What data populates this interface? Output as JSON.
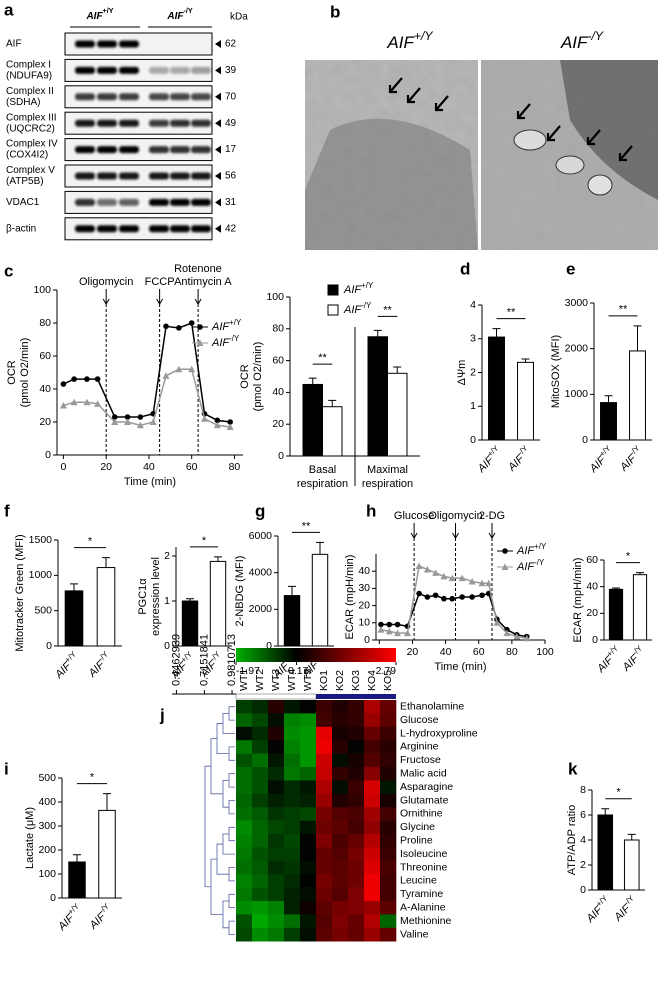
{
  "blot": {
    "panel": "a",
    "groups": [
      "AIF+/Y",
      "AIF-/Y"
    ],
    "unit": "kDa",
    "rows": [
      {
        "label": [
          "AIF"
        ],
        "kda": 62
      },
      {
        "label": [
          "Complex I",
          "(NDUFA9)"
        ],
        "kda": 39
      },
      {
        "label": [
          "Complex II",
          "(SDHA)"
        ],
        "kda": 70
      },
      {
        "label": [
          "Complex III",
          "(UQCRC2)"
        ],
        "kda": 49
      },
      {
        "label": [
          "Complex IV",
          "(COX4I2)"
        ],
        "kda": 17
      },
      {
        "label": [
          "Complex V",
          "(ATP5B)"
        ],
        "kda": 56
      },
      {
        "label": [
          "VDAC1"
        ],
        "kda": 31
      },
      {
        "label": [
          "β-actin"
        ],
        "kda": 42
      }
    ]
  },
  "micrographs": {
    "panel": "b",
    "titles": [
      "AIF+/Y",
      "AIF-/Y"
    ]
  },
  "chart_data": [
    {
      "type": "line",
      "panel": "c",
      "ylabel": [
        "OCR",
        "(pmol O2/min)"
      ],
      "xlabel": "Time (min)",
      "xlim": [
        -3,
        84
      ],
      "xticks": [
        0,
        20,
        40,
        60,
        80
      ],
      "ylim": [
        0,
        100
      ],
      "yticks": [
        0,
        20,
        40,
        60,
        80,
        100
      ],
      "x": [
        0,
        5,
        11,
        16,
        24,
        30,
        36,
        42,
        48,
        54,
        60,
        66,
        72,
        78
      ],
      "series": [
        {
          "name": "AIF+/Y",
          "color": "#000000",
          "marker": "circle",
          "values": [
            43,
            46,
            46,
            46,
            23,
            23,
            23,
            25,
            78,
            77,
            80,
            25,
            21,
            20
          ]
        },
        {
          "name": "AIF-/Y",
          "color": "#999999",
          "marker": "triangle",
          "values": [
            30,
            32,
            32,
            31,
            20,
            20,
            18,
            20,
            48,
            52,
            52,
            22,
            18,
            17
          ]
        }
      ],
      "annotations": [
        {
          "text": [
            "Oligomycin"
          ],
          "x": 20
        },
        {
          "text": [
            "FCCP"
          ],
          "x": 45
        },
        {
          "text": [
            "Rotenone",
            "Antimycin A"
          ],
          "x": 63
        }
      ]
    },
    {
      "type": "bar",
      "ylabel": [
        "OCR",
        "(pmol O2/min)"
      ],
      "categories": [
        [
          "Basal",
          "respiration"
        ],
        [
          "Maximal",
          "respiration"
        ]
      ],
      "ylim": [
        0,
        100
      ],
      "yticks": [
        0,
        20,
        40,
        60,
        80,
        100
      ],
      "series": [
        {
          "name": "AIF+/Y",
          "color": "#000000",
          "values": [
            45,
            75
          ],
          "errors": [
            4,
            4
          ]
        },
        {
          "name": "AIF-/Y",
          "color": "#ffffff",
          "values": [
            31,
            52
          ],
          "errors": [
            4,
            4
          ]
        }
      ],
      "significance": [
        "**",
        "**"
      ]
    },
    {
      "type": "bar",
      "panel": "d",
      "ylabel": "ΔΨm",
      "categories": [
        "AIF+/Y",
        "AIF-/Y"
      ],
      "ylim": [
        0,
        4
      ],
      "yticks": [
        0,
        1,
        2,
        3,
        4
      ],
      "values": [
        3.05,
        2.3
      ],
      "errors": [
        0.25,
        0.1
      ],
      "colors": [
        "#000000",
        "#ffffff"
      ],
      "significance": "**"
    },
    {
      "type": "bar",
      "panel": "e",
      "ylabel": "MitoSOX (MFI)",
      "categories": [
        "AIF+/Y",
        "AIF-/Y"
      ],
      "ylim": [
        0,
        3000
      ],
      "yticks": [
        0,
        1000,
        2000,
        3000
      ],
      "values": [
        820,
        1950
      ],
      "errors": [
        150,
        550
      ],
      "colors": [
        "#000000",
        "#ffffff"
      ],
      "significance": "**"
    },
    {
      "type": "bar",
      "panel": "f",
      "ylabel": "Mitotracker Green (MFI)",
      "categories": [
        "AIF+/Y",
        "AIF-/Y"
      ],
      "ylim": [
        0,
        1500
      ],
      "yticks": [
        0,
        500,
        1000,
        1500
      ],
      "values": [
        780,
        1110
      ],
      "errors": [
        100,
        140
      ],
      "colors": [
        "#000000",
        "#ffffff"
      ],
      "significance": "*"
    },
    {
      "type": "bar",
      "ylabel": [
        "PGC1α",
        "expression level"
      ],
      "categories": [
        "AIF+/Y",
        "AIF-/Y"
      ],
      "ylim": [
        0,
        2.2
      ],
      "yticks": [
        0,
        1,
        2
      ],
      "values": [
        1.0,
        1.88
      ],
      "errors": [
        0.05,
        0.1
      ],
      "colors": [
        "#000000",
        "#ffffff"
      ],
      "significance": "*"
    },
    {
      "type": "bar",
      "panel": "g",
      "ylabel": "2-NBDG (MFI)",
      "categories": [
        "AIF+/Y",
        "AIF-/Y"
      ],
      "ylim": [
        0,
        6000
      ],
      "yticks": [
        0,
        2000,
        4000,
        6000
      ],
      "values": [
        2750,
        5000
      ],
      "errors": [
        500,
        650
      ],
      "colors": [
        "#000000",
        "#ffffff"
      ],
      "significance": "**"
    },
    {
      "type": "line",
      "panel": "h",
      "ylabel": [
        "ECAR (mpH/min)"
      ],
      "xlabel": "Time (min)",
      "xlim": [
        -2,
        100
      ],
      "xticks": [
        0,
        20,
        40,
        60,
        80,
        100
      ],
      "ylim": [
        0,
        50
      ],
      "yticks": [
        0,
        10,
        20,
        30,
        40
      ],
      "x": [
        1,
        6,
        11,
        17,
        24,
        29,
        34,
        39,
        44,
        50,
        56,
        62,
        66,
        71,
        77,
        83,
        89
      ],
      "series": [
        {
          "name": "AIF+/Y",
          "color": "#000000",
          "marker": "circle",
          "values": [
            9,
            9,
            9,
            8,
            27,
            25,
            26,
            24,
            24,
            25,
            25,
            26,
            27,
            12,
            6,
            3,
            2
          ]
        },
        {
          "name": "AIF-/Y",
          "color": "#999999",
          "marker": "triangle",
          "values": [
            6,
            5,
            4,
            4,
            43,
            41,
            39,
            37,
            36,
            36,
            34,
            33,
            33,
            10,
            4,
            2,
            1
          ]
        }
      ],
      "annotations": [
        {
          "text": [
            "Glucose"
          ],
          "x": 21
        },
        {
          "text": [
            "Oligomycin"
          ],
          "x": 46
        },
        {
          "text": [
            "2-DG"
          ],
          "x": 68
        }
      ]
    },
    {
      "type": "bar",
      "ylabel": "ECAR (mpH/min)",
      "categories": [
        "AIF+/Y",
        "AIF-/Y"
      ],
      "ylim": [
        0,
        60
      ],
      "yticks": [
        0,
        20,
        40,
        60
      ],
      "values": [
        38,
        49
      ],
      "errors": [
        1,
        1.5
      ],
      "colors": [
        "#000000",
        "#ffffff"
      ],
      "significance": "*"
    },
    {
      "type": "bar",
      "panel": "i",
      "ylabel": "Lactate (μM)",
      "categories": [
        "AIF+/Y",
        "AIF-/Y"
      ],
      "ylim": [
        0,
        500
      ],
      "yticks": [
        0,
        100,
        200,
        300,
        400,
        500
      ],
      "values": [
        150,
        365
      ],
      "errors": [
        30,
        70
      ],
      "colors": [
        "#000000",
        "#ffffff"
      ],
      "significance": "*"
    },
    {
      "type": "heatmap",
      "panel": "j",
      "columns": [
        "WT1",
        "WT2",
        "WT3",
        "WT4",
        "WT5",
        "KO1",
        "KO2",
        "KO3",
        "KO4",
        "KO5"
      ],
      "rows": [
        "Ethanolamine",
        "Glucose",
        "L-hydroxyproline",
        "Arginine",
        "Fructose",
        "Malic acid",
        "Asparagine",
        "Glutamate",
        "Ornithine",
        "Glycine",
        "Proline",
        "Isoleucine",
        "Threonine",
        "Leucine",
        "Tyramine",
        "A-Alanine",
        "Methionine",
        "Valine"
      ],
      "values": [
        [
          -0.8,
          -0.6,
          0.3,
          -0.4,
          -0.2,
          0.5,
          0.2,
          0.4,
          1.8,
          1.0
        ],
        [
          -1.2,
          -0.9,
          -0.3,
          -1.5,
          -1.6,
          0.6,
          0.3,
          0.4,
          1.6,
          0.9
        ],
        [
          -0.3,
          -0.6,
          0.2,
          -1.6,
          -1.7,
          2.5,
          0.1,
          0.2,
          1.0,
          0.5
        ],
        [
          -1.4,
          -0.8,
          -0.2,
          -1.5,
          -1.7,
          2.6,
          0.3,
          -0.2,
          0.6,
          0.3
        ],
        [
          -1.0,
          -1.3,
          -0.4,
          -1.3,
          -1.7,
          2.2,
          -0.3,
          0.1,
          0.8,
          0.4
        ],
        [
          -1.3,
          -1.0,
          -0.6,
          -1.4,
          -1.2,
          2.1,
          0.4,
          0.2,
          1.4,
          0.2
        ],
        [
          -1.3,
          -1.0,
          -0.3,
          -0.6,
          -0.4,
          1.8,
          -0.3,
          0.5,
          2.3,
          -0.4
        ],
        [
          -1.2,
          -0.8,
          -0.5,
          -0.6,
          -0.5,
          1.6,
          0.2,
          0.4,
          2.2,
          0.1
        ],
        [
          -1.3,
          -1.1,
          -0.7,
          -0.8,
          -0.9,
          1.2,
          0.8,
          0.7,
          1.7,
          0.6
        ],
        [
          -1.6,
          -1.2,
          -0.9,
          -0.8,
          -0.4,
          1.1,
          0.9,
          0.6,
          1.5,
          0.3
        ],
        [
          -1.5,
          -1.2,
          -0.7,
          -0.9,
          -0.2,
          1.3,
          0.7,
          1.0,
          1.9,
          0.4
        ],
        [
          -1.4,
          -1.0,
          -0.8,
          -0.8,
          -0.2,
          1.0,
          0.8,
          1.2,
          2.2,
          0.5
        ],
        [
          -1.3,
          -1.1,
          -0.6,
          -0.7,
          -0.3,
          1.0,
          0.9,
          1.1,
          2.4,
          0.7
        ],
        [
          -1.5,
          -1.2,
          -0.8,
          -0.6,
          -0.2,
          1.2,
          0.9,
          1.1,
          2.6,
          0.6
        ],
        [
          -1.4,
          -1.0,
          -0.8,
          -0.5,
          -0.3,
          1.1,
          0.8,
          1.3,
          2.6,
          0.6
        ],
        [
          -1.6,
          -1.7,
          -1.5,
          -0.5,
          0.0,
          0.9,
          1.2,
          1.3,
          1.6,
          0.9
        ],
        [
          -1.0,
          -1.9,
          -1.6,
          -1.3,
          -0.4,
          0.8,
          1.3,
          1.0,
          1.9,
          -1.2
        ],
        [
          -0.9,
          -1.6,
          -1.4,
          -0.8,
          -0.3,
          0.9,
          1.2,
          1.0,
          1.6,
          1.0
        ]
      ],
      "colorbar_ticks": [
        -1.97,
        -0.17,
        2.79
      ],
      "colors": [
        "#00b000",
        "#000000",
        "#ff0000"
      ],
      "tree_scale": [
        0.4462939,
        0.7151841,
        0.9810713
      ]
    },
    {
      "type": "bar",
      "panel": "k",
      "ylabel": "ATP/ADP ratio",
      "categories": [
        "AIF+/Y",
        "AIF-/Y"
      ],
      "ylim": [
        0,
        8
      ],
      "yticks": [
        0,
        2,
        4,
        6,
        8
      ],
      "values": [
        6.0,
        4.0
      ],
      "errors": [
        0.5,
        0.45
      ],
      "colors": [
        "#000000",
        "#ffffff"
      ],
      "significance": "*"
    }
  ]
}
